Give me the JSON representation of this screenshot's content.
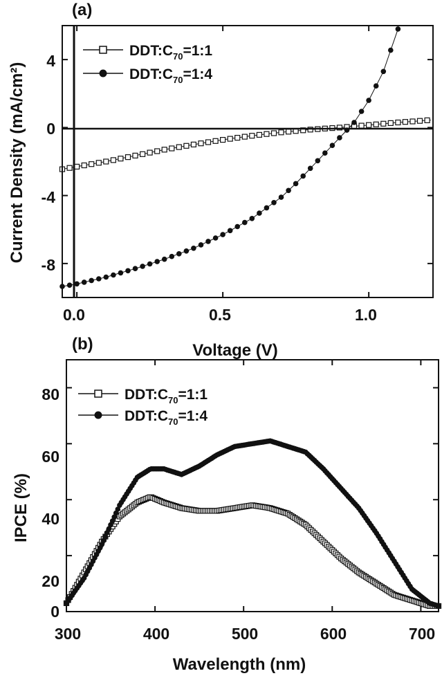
{
  "chart_data": [
    {
      "panel": "(a)",
      "type": "scatter",
      "xlabel": "Voltage (V)",
      "ylabel": "Current Density (mA/cm²)",
      "xlim": [
        -0.05,
        1.22
      ],
      "ylim": [
        -10,
        6
      ],
      "xticks": [
        "0.0",
        "0.5",
        "1.0"
      ],
      "yticks": [
        "4",
        "0",
        "-4",
        "-8"
      ],
      "reference_lines": [
        "y=0",
        "x=0"
      ],
      "legend_position": "top-left",
      "series": [
        {
          "name": "DDT:C70=1:1",
          "marker": "open-square",
          "x": [
            -0.05,
            0.0,
            0.1,
            0.2,
            0.3,
            0.4,
            0.5,
            0.6,
            0.7,
            0.8,
            0.9,
            1.0,
            1.1,
            1.22
          ],
          "y": [
            -2.45,
            -2.3,
            -2.0,
            -1.65,
            -1.3,
            -1.0,
            -0.72,
            -0.48,
            -0.28,
            -0.12,
            0.0,
            0.15,
            0.3,
            0.45
          ]
        },
        {
          "name": "DDT:C70=1:4",
          "marker": "filled-circle",
          "x": [
            -0.05,
            0.0,
            0.1,
            0.2,
            0.3,
            0.4,
            0.5,
            0.6,
            0.7,
            0.75,
            0.8,
            0.85,
            0.9,
            0.95,
            1.0,
            1.05,
            1.1
          ],
          "y": [
            -9.35,
            -9.2,
            -8.8,
            -8.3,
            -7.75,
            -7.1,
            -6.3,
            -5.35,
            -4.1,
            -3.3,
            -2.4,
            -1.5,
            -0.6,
            0.3,
            1.6,
            3.3,
            5.8
          ]
        }
      ]
    },
    {
      "panel": "(b)",
      "type": "scatter",
      "xlabel": "Wavelength (nm)",
      "ylabel": "IPCE (%)",
      "xlim": [
        300,
        720
      ],
      "ylim": [
        0,
        90
      ],
      "xticks": [
        "300",
        "400",
        "500",
        "600",
        "700"
      ],
      "yticks": [
        "80",
        "60",
        "40",
        "20",
        "0"
      ],
      "legend_position": "top-left",
      "series": [
        {
          "name": "DDT:C70=1:1",
          "marker": "open-square",
          "x": [
            300,
            320,
            340,
            360,
            380,
            395,
            410,
            430,
            450,
            470,
            490,
            510,
            530,
            550,
            570,
            590,
            610,
            630,
            650,
            670,
            690,
            710,
            720
          ],
          "y": [
            3,
            14,
            25,
            34,
            39,
            41,
            39,
            37,
            36,
            36,
            37,
            38,
            37,
            35,
            31,
            25,
            19,
            14,
            10,
            6,
            4,
            2,
            2
          ]
        },
        {
          "name": "DDT:C70=1:4",
          "marker": "filled-circle",
          "x": [
            300,
            320,
            340,
            360,
            380,
            395,
            410,
            430,
            450,
            470,
            490,
            510,
            530,
            550,
            570,
            590,
            610,
            630,
            650,
            670,
            690,
            710,
            720
          ],
          "y": [
            3,
            12,
            24,
            38,
            48,
            51,
            51,
            49,
            52,
            56,
            59,
            60,
            61,
            59,
            57,
            51,
            44,
            37,
            28,
            18,
            8,
            3,
            2
          ]
        }
      ]
    }
  ],
  "legend": {
    "prefix": "DDT:C",
    "subscript": "70",
    "suffix_1": "=1:1",
    "suffix_2": "=1:4"
  },
  "colors": {
    "ink": "#111111",
    "background": "#ffffff"
  }
}
